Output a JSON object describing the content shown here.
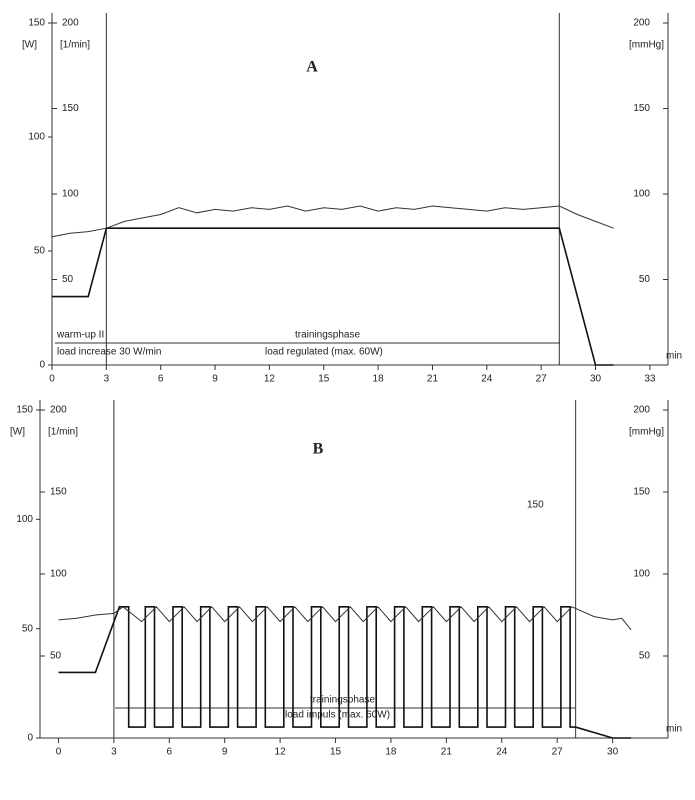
{
  "chart_data": [
    {
      "type": "line",
      "title": "A",
      "y_label": "[W]",
      "y3_label": "[1/min]",
      "y2_label": "[mmHg]",
      "x_label": "min",
      "xlim": [
        0,
        34
      ],
      "xticks": [
        0,
        3,
        6,
        9,
        12,
        15,
        18,
        21,
        24,
        27,
        30,
        33
      ],
      "ylim": [
        0,
        150
      ],
      "yticks": [
        0,
        50,
        100,
        150
      ],
      "y3lim": [
        0,
        200
      ],
      "y3ticks": [
        50,
        100,
        150,
        200
      ],
      "y2lim": [
        0,
        200
      ],
      "y2ticks": [
        50,
        100,
        150,
        200
      ],
      "vlines": [
        3,
        28
      ],
      "annotations": [
        "warm-up II",
        "load increase 30 W/min",
        "trainingsphase",
        "load regulated (max. 60W)"
      ],
      "series": [
        {
          "color": "#111111",
          "axis": "y",
          "x": [
            0,
            2,
            3,
            28,
            30,
            31
          ],
          "values": [
            30,
            30,
            60,
            60,
            0,
            0
          ]
        },
        {
          "color": "#333333",
          "axis": "y3",
          "x": [
            0,
            1,
            2,
            3,
            4,
            5,
            6,
            7,
            8,
            9,
            10,
            11,
            12,
            13,
            14,
            15,
            16,
            17,
            18,
            19,
            20,
            21,
            22,
            23,
            24,
            25,
            26,
            27,
            28,
            29,
            30,
            31
          ],
          "values": [
            75,
            77,
            78,
            80,
            84,
            86,
            88,
            92,
            89,
            91,
            90,
            92,
            91,
            93,
            90,
            92,
            91,
            93,
            90,
            92,
            91,
            93,
            92,
            91,
            90,
            92,
            91,
            92,
            93,
            88,
            84,
            80
          ]
        }
      ]
    },
    {
      "type": "line",
      "title": "B",
      "y_label": "[W]",
      "y3_label": "[1/min]",
      "y2_label": "[mmHg]",
      "x_label": "min",
      "xlim": [
        -1,
        33
      ],
      "xticks": [
        0,
        3,
        6,
        9,
        12,
        15,
        18,
        21,
        24,
        27,
        30
      ],
      "ylim": [
        0,
        150
      ],
      "yticks": [
        0,
        50,
        100,
        150
      ],
      "y3lim": [
        0,
        200
      ],
      "y3ticks": [
        50,
        100,
        150,
        200
      ],
      "y2lim": [
        0,
        200
      ],
      "y2ticks": [
        50,
        100,
        150,
        200
      ],
      "vlines": [
        3,
        28
      ],
      "annotations": [
        "trainingsphase",
        "load impuls (max. 60W)",
        "150"
      ],
      "series": [
        {
          "color": "#111111",
          "axis": "y",
          "x": [
            0,
            2,
            3.3,
            3.8,
            3.8,
            4.7,
            4.7,
            5.2,
            5.2,
            6.2,
            6.2,
            6.7,
            6.7,
            7.7,
            7.7,
            8.2,
            8.2,
            9.2,
            9.2,
            9.7,
            9.7,
            10.7,
            10.7,
            11.2,
            11.2,
            12.2,
            12.2,
            12.7,
            12.7,
            13.7,
            13.7,
            14.2,
            14.2,
            15.2,
            15.2,
            15.7,
            15.7,
            16.7,
            16.7,
            17.2,
            17.2,
            18.2,
            18.2,
            18.7,
            18.7,
            19.7,
            19.7,
            20.2,
            20.2,
            21.2,
            21.2,
            21.7,
            21.7,
            22.7,
            22.7,
            23.2,
            23.2,
            24.2,
            24.2,
            24.7,
            24.7,
            25.7,
            25.7,
            26.2,
            26.2,
            27.2,
            27.2,
            27.7,
            27.7,
            28,
            30,
            31
          ],
          "values": [
            30,
            30,
            60,
            60,
            5,
            5,
            60,
            60,
            5,
            5,
            60,
            60,
            5,
            5,
            60,
            60,
            5,
            5,
            60,
            60,
            5,
            5,
            60,
            60,
            5,
            5,
            60,
            60,
            5,
            5,
            60,
            60,
            5,
            5,
            60,
            60,
            5,
            5,
            60,
            60,
            5,
            5,
            60,
            60,
            5,
            5,
            60,
            60,
            5,
            5,
            60,
            60,
            5,
            5,
            60,
            60,
            5,
            5,
            60,
            60,
            5,
            5,
            60,
            60,
            5,
            5,
            60,
            60,
            5,
            5,
            0,
            0
          ]
        },
        {
          "color": "#333333",
          "axis": "y3",
          "x": [
            0,
            1,
            2,
            3,
            3.5,
            4.5,
            5.3,
            6.0,
            6.8,
            7.5,
            8.3,
            9.0,
            9.8,
            10.5,
            11.3,
            12.0,
            12.8,
            13.5,
            14.3,
            15.0,
            15.8,
            16.5,
            17.3,
            18.0,
            18.8,
            19.5,
            20.3,
            21.0,
            21.8,
            22.5,
            23.3,
            24.0,
            24.8,
            25.5,
            26.3,
            27.0,
            27.8,
            29,
            30,
            30.5,
            31
          ],
          "values": [
            72,
            73,
            75,
            76,
            80,
            71,
            80,
            71,
            80,
            71,
            80,
            71,
            80,
            71,
            80,
            71,
            80,
            71,
            80,
            71,
            80,
            71,
            80,
            71,
            80,
            71,
            80,
            71,
            80,
            71,
            80,
            71,
            80,
            71,
            80,
            71,
            80,
            74,
            72,
            73,
            66
          ]
        }
      ]
    }
  ]
}
